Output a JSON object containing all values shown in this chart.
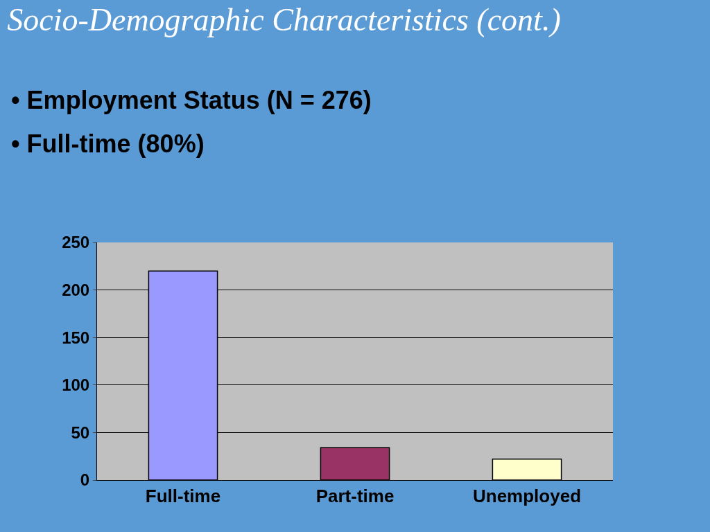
{
  "chart_data": {
    "type": "bar",
    "title": "Socio-Demographic Characteristics (cont.)",
    "annotations": [
      "• Employment Status (N = 276)",
      "• Full-time (80%)"
    ],
    "categories": [
      "Full-time",
      "Part-time",
      "Unemployed"
    ],
    "values": [
      220,
      34,
      22
    ],
    "colors": [
      "#9999ff",
      "#993366",
      "#ffffcc"
    ],
    "ylim": [
      0,
      250
    ],
    "yticks": [
      0,
      50,
      100,
      150,
      200,
      250
    ],
    "grid": "y"
  }
}
